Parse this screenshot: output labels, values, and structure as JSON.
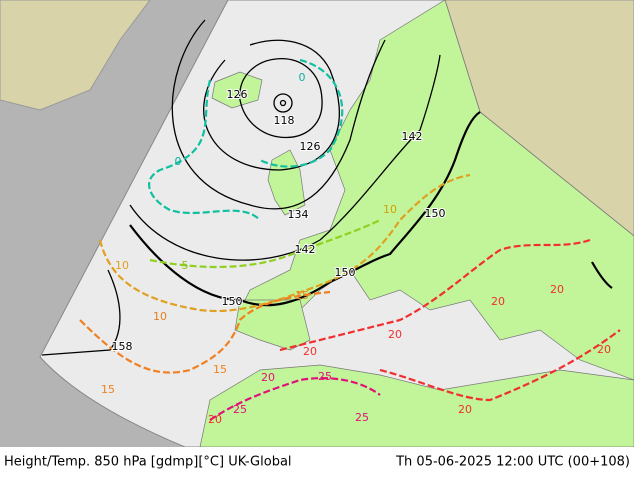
{
  "footer": {
    "title": "Height/Temp. 850 hPa [gdmp][°C] UK-Global",
    "valid": "Th 05-06-2025 12:00 UTC (00+108)"
  },
  "height_labels": [
    "126",
    "118",
    "126",
    "134",
    "142",
    "142",
    "150",
    "150",
    "150",
    "158"
  ],
  "temp_labels": [
    "0",
    "0",
    "5",
    "10",
    "10",
    "10",
    "15",
    "15",
    "15",
    "20",
    "20",
    "20",
    "20",
    "20",
    "20",
    "20",
    "25",
    "25",
    "25",
    "20"
  ]
}
